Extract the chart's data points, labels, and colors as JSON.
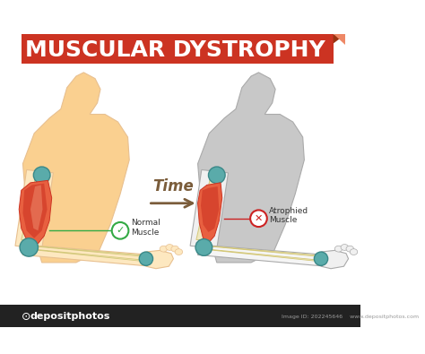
{
  "title": "MUSCULAR DYSTROPHY",
  "title_bg_color": "#cc3322",
  "title_text_color": "#ffffff",
  "background_color": "#ffffff",
  "time_label": "Time",
  "time_arrow_color": "#7a5c3a",
  "normal_label": "Normal\nMuscle",
  "atrophied_label": "Atrophied\nMuscle",
  "normal_check_color": "#33aa44",
  "atrophied_x_color": "#cc2222",
  "normal_line_color": "#33aa44",
  "atrophied_line_color": "#cc2222",
  "body_left_fill": "#fde8c0",
  "body_left_fill2": "#fad090",
  "body_right_fill": "#c8c8c8",
  "body_right_outline": "#aaaaaa",
  "muscle_red": "#cc3322",
  "muscle_orange": "#e86040",
  "muscle_light": "#f09070",
  "bone_color": "#f0e8c0",
  "bone_outline": "#d4c87a",
  "joint_color": "#5aabaa",
  "joint_outline": "#3a8888",
  "skin_outline": "#e8c090",
  "footer_bg": "#222222",
  "footer_text": "depositphotos",
  "image_id_text": "Image ID: 202245646    www.depositphotos.com"
}
